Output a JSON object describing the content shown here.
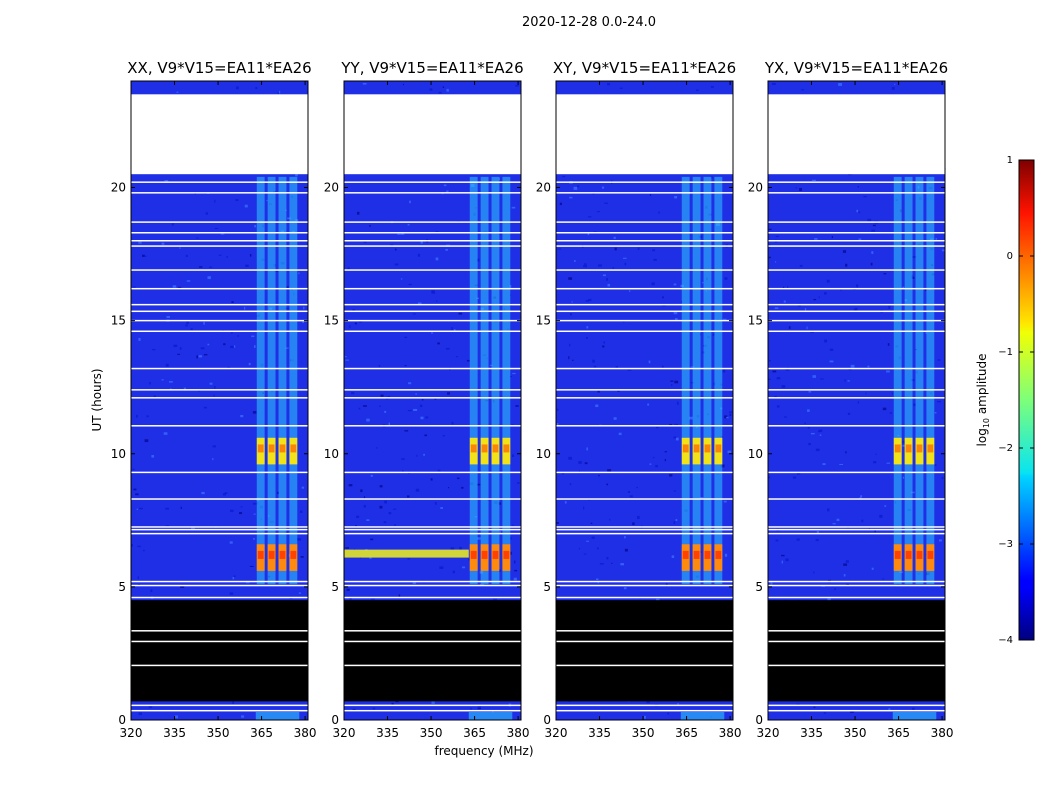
{
  "chart_data": {
    "type": "heatmap",
    "title": "2020-12-28 0.0-24.0",
    "xlabel": "frequency (MHz)",
    "ylabel": "UT (hours)",
    "xlim": [
      320,
      381
    ],
    "ylim": [
      0,
      24
    ],
    "x_ticks": [
      320,
      335,
      350,
      365,
      380
    ],
    "y_ticks": [
      0,
      5,
      10,
      15,
      20
    ],
    "colorbar": {
      "label": "log10 amplitude",
      "label_base": "log",
      "label_sub": "10",
      "label_rest": " amplitude",
      "range": [
        -4,
        1
      ],
      "ticks": [
        {
          "value": 1,
          "text": "1"
        },
        {
          "value": 0,
          "text": "0"
        },
        {
          "value": -1,
          "text": "−1"
        },
        {
          "value": -2,
          "text": "−2"
        },
        {
          "value": -3,
          "text": "−3"
        },
        {
          "value": -4,
          "text": "−4"
        }
      ]
    },
    "panels": [
      {
        "name": "XX",
        "title": "XX, V9*V15=EA11*EA26"
      },
      {
        "name": "YY",
        "title": "YY, V9*V15=EA11*EA26"
      },
      {
        "name": "XY",
        "title": "XY, V9*V15=EA11*EA26"
      },
      {
        "name": "YX",
        "title": "YX, V9*V15=EA11*EA26"
      }
    ],
    "data_gaps_hours": [
      [
        20.5,
        23.5
      ]
    ],
    "flagged_hours": [
      [
        0.7,
        4.5
      ]
    ],
    "rfi_band_mhz": [
      363,
      378
    ],
    "strong_rfi_hours": [
      [
        5.6,
        6.6
      ],
      [
        9.6,
        10.6
      ]
    ]
  }
}
